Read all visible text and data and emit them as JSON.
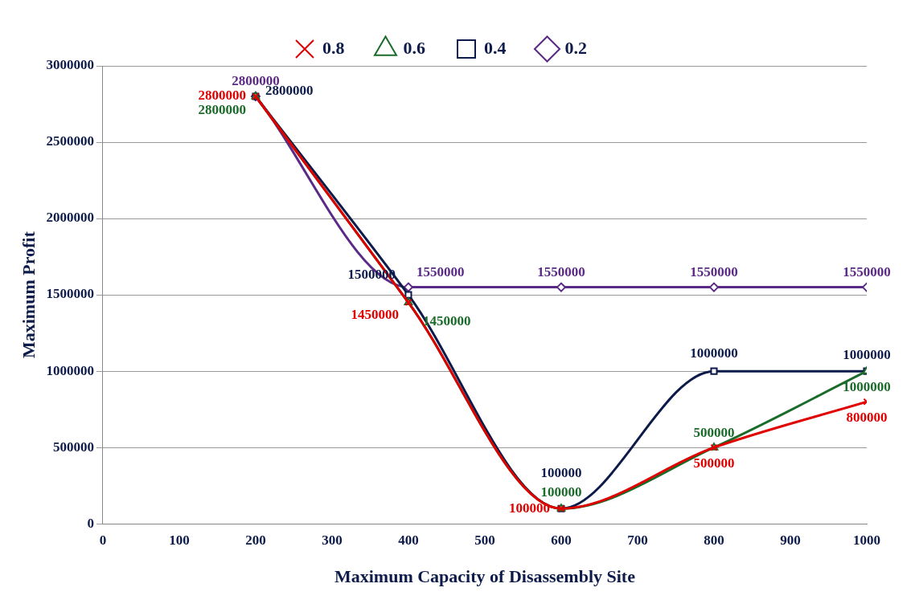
{
  "chart_data": {
    "type": "line",
    "xlabel": "Maximum Capacity of Disassembly Site",
    "ylabel": "Maximum Profit",
    "x": [
      200,
      400,
      600,
      800,
      1000
    ],
    "series": [
      {
        "name": "0.2",
        "color": "#5b2a86",
        "marker": "diamond",
        "values": [
          2800000,
          1550000,
          1550000,
          1550000,
          1550000
        ]
      },
      {
        "name": "0.4",
        "color": "#0d1b4a",
        "marker": "square",
        "values": [
          2800000,
          1500000,
          100000,
          1000000,
          1000000
        ]
      },
      {
        "name": "0.6",
        "color": "#1b6b2a",
        "marker": "triangle",
        "values": [
          2800000,
          1450000,
          100000,
          500000,
          1000000
        ]
      },
      {
        "name": "0.8",
        "color": "#e00000",
        "marker": "cross",
        "values": [
          2800000,
          1450000,
          100000,
          500000,
          800000
        ]
      }
    ],
    "xlim": [
      0,
      1000
    ],
    "xticks": [
      0,
      100,
      200,
      300,
      400,
      500,
      600,
      700,
      800,
      900,
      1000
    ],
    "ylim": [
      0,
      3000000
    ],
    "yticks": [
      0,
      500000,
      1000000,
      1500000,
      2000000,
      2500000,
      3000000
    ],
    "grid": "y",
    "legend": "top",
    "data_labels": true
  }
}
